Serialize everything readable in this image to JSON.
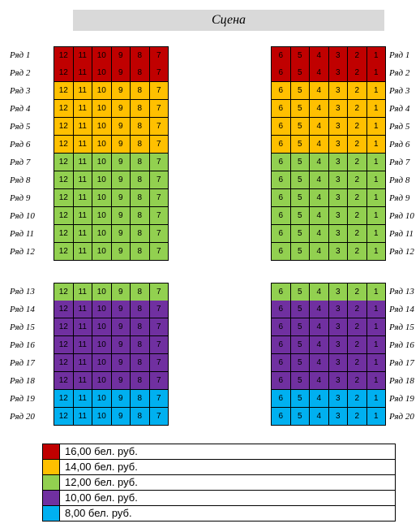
{
  "stage_label": "Сцена",
  "tiers": {
    "red": {
      "color": "#c00000",
      "price": "16,00 бел. руб."
    },
    "orange": {
      "color": "#ffc000",
      "price": "14,00 бел. руб."
    },
    "green": {
      "color": "#92d050",
      "price": "12,00 бел. руб."
    },
    "purple": {
      "color": "#7030a0",
      "price": "10,00 бел. руб."
    },
    "blue": {
      "color": "#00b0f0",
      "price": "8,00 бел. руб."
    }
  },
  "left_seat_numbers": [
    "12",
    "11",
    "10",
    "9",
    "8",
    "7"
  ],
  "right_seat_numbers": [
    "6",
    "5",
    "4",
    "3",
    "2",
    "1"
  ],
  "rows": [
    {
      "label": "Ряд 1",
      "tier": "red"
    },
    {
      "label": "Ряд 2",
      "tier": "red"
    },
    {
      "label": "Ряд 3",
      "tier": "orange"
    },
    {
      "label": "Ряд 4",
      "tier": "orange"
    },
    {
      "label": "Ряд 5",
      "tier": "orange"
    },
    {
      "label": "Ряд 6",
      "tier": "orange"
    },
    {
      "label": "Ряд 7",
      "tier": "green"
    },
    {
      "label": "Ряд 8",
      "tier": "green"
    },
    {
      "label": "Ряд 9",
      "tier": "green"
    },
    {
      "label": "Ряд 10",
      "tier": "green"
    },
    {
      "label": "Ряд 11",
      "tier": "green"
    },
    {
      "label": "Ряд 12",
      "tier": "green"
    },
    {
      "label": "Ряд 13",
      "tier": "green"
    },
    {
      "label": "Ряд 14",
      "tier": "purple"
    },
    {
      "label": "Ряд 15",
      "tier": "purple"
    },
    {
      "label": "Ряд 16",
      "tier": "purple"
    },
    {
      "label": "Ряд 17",
      "tier": "purple"
    },
    {
      "label": "Ряд 18",
      "tier": "purple"
    },
    {
      "label": "Ряд 19",
      "tier": "blue"
    },
    {
      "label": "Ряд 20",
      "tier": "blue"
    }
  ],
  "legend": [
    "red",
    "orange",
    "green",
    "purple",
    "blue"
  ]
}
